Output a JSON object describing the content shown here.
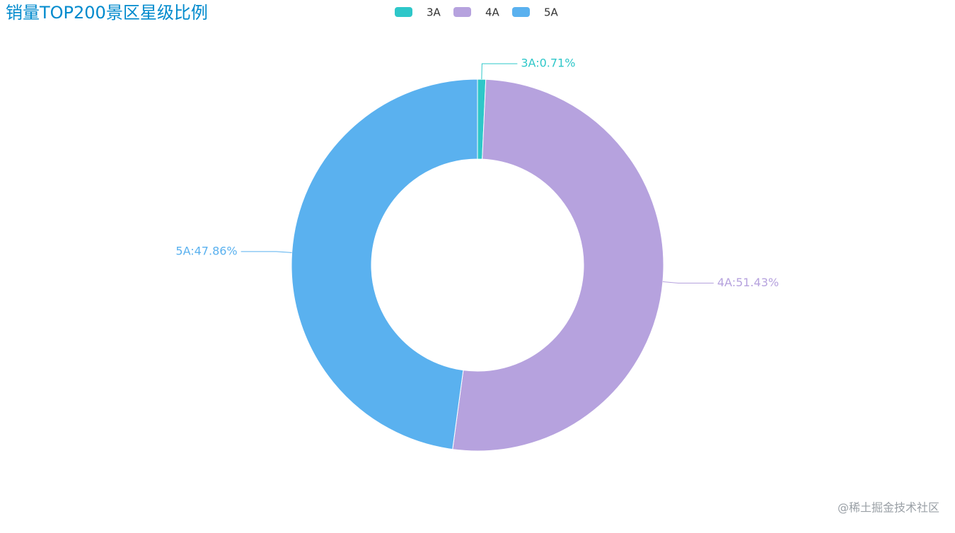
{
  "chart_data": {
    "type": "donut",
    "title": "销量TOP200景区星级比例",
    "categories": [
      "3A",
      "4A",
      "5A"
    ],
    "values": [
      0.71,
      51.43,
      47.86
    ],
    "value_labels": [
      "3A:0.71%",
      "4A:51.43%",
      "5A:47.86%"
    ],
    "colors": [
      "#2ec7c9",
      "#b6a2de",
      "#5ab1ef"
    ],
    "legend": "top"
  },
  "watermark": "@稀土掘金技术社区"
}
